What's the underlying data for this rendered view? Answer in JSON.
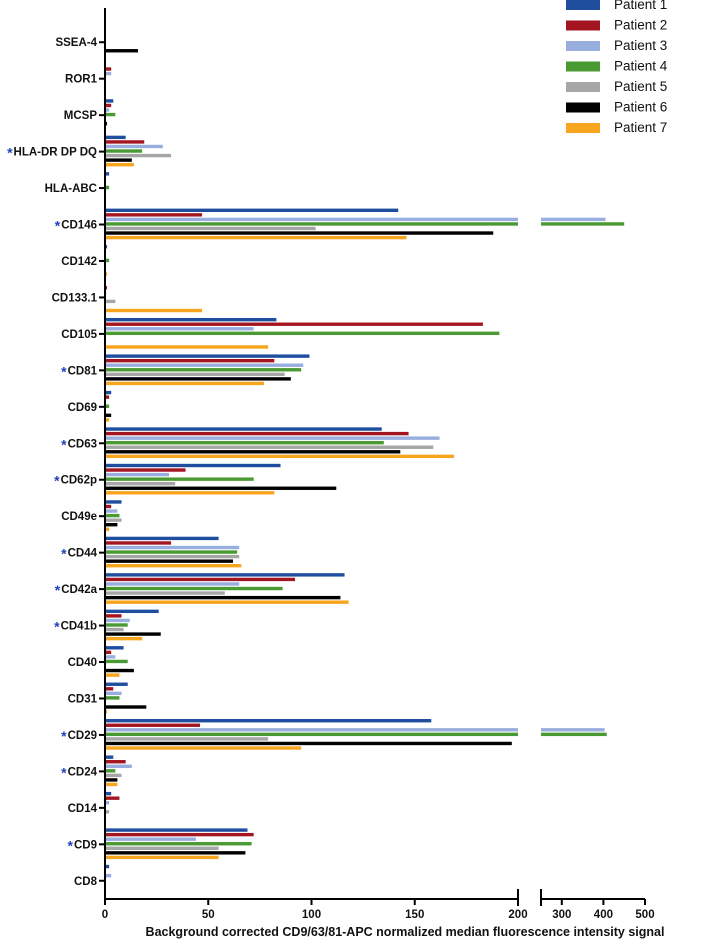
{
  "chart_data": {
    "type": "bar",
    "orientation": "horizontal",
    "xlabel": "Background corrected CD9/63/81-APC normalized median fluorescence intensity signal",
    "ylabel": "",
    "xlim": [
      0,
      500
    ],
    "x_axis_break": {
      "from": 200,
      "to": 250
    },
    "x_ticks": [
      0,
      50,
      100,
      150,
      200,
      300,
      400,
      500
    ],
    "grid": false,
    "legend_position": "top-right",
    "categories": [
      "SSEA-4",
      "ROR1",
      "MCSP",
      "HLA-DR DP DQ",
      "HLA-ABC",
      "CD146",
      "CD142",
      "CD133.1",
      "CD105",
      "CD81",
      "CD69",
      "CD63",
      "CD62p",
      "CD49e",
      "CD44",
      "CD42a",
      "CD41b",
      "CD40",
      "CD31",
      "CD29",
      "CD24",
      "CD14",
      "CD9",
      "CD8"
    ],
    "starred": [
      false,
      false,
      false,
      true,
      false,
      true,
      false,
      false,
      false,
      true,
      false,
      true,
      true,
      false,
      true,
      true,
      true,
      false,
      false,
      true,
      true,
      false,
      true,
      false
    ],
    "star_symbol": "*",
    "series": [
      {
        "name": "Patient 1",
        "color": "#1f4e9e",
        "values": [
          0,
          0,
          4,
          10,
          2,
          142,
          1,
          0,
          83,
          99,
          3,
          134,
          85,
          8,
          55,
          116,
          26,
          9,
          11,
          158,
          4,
          3,
          69,
          2
        ]
      },
      {
        "name": "Patient 2",
        "color": "#a31621",
        "values": [
          0,
          3,
          3,
          19,
          0,
          47,
          0,
          1,
          183,
          82,
          2,
          147,
          39,
          3,
          32,
          92,
          8,
          3,
          4,
          46,
          10,
          7,
          72,
          0
        ]
      },
      {
        "name": "Patient 3",
        "color": "#98aedf",
        "values": [
          0,
          3,
          2,
          28,
          0,
          405,
          0,
          0,
          72,
          96,
          0,
          162,
          31,
          6,
          65,
          65,
          12,
          5,
          8,
          403,
          13,
          2,
          44,
          3
        ]
      },
      {
        "name": "Patient 4",
        "color": "#4a9a33",
        "values": [
          0,
          0,
          5,
          18,
          2,
          450,
          2,
          0,
          191,
          95,
          2,
          135,
          72,
          7,
          64,
          86,
          11,
          11,
          7,
          408,
          5,
          0,
          71,
          0
        ]
      },
      {
        "name": "Patient 5",
        "color": "#a6a6a6",
        "values": [
          0,
          0,
          0,
          32,
          0,
          102,
          0,
          5,
          0,
          87,
          0,
          159,
          34,
          8,
          65,
          58,
          9,
          0,
          0,
          79,
          8,
          2,
          55,
          0
        ]
      },
      {
        "name": "Patient 6",
        "color": "#000000",
        "values": [
          16,
          0,
          1,
          13,
          0,
          188,
          0,
          0,
          0,
          90,
          3,
          143,
          112,
          6,
          62,
          114,
          27,
          14,
          20,
          197,
          6,
          0,
          68,
          0
        ]
      },
      {
        "name": "Patient 7",
        "color": "#f7a51c",
        "values": [
          0,
          0,
          0,
          14,
          0,
          146,
          1,
          47,
          79,
          77,
          2,
          169,
          82,
          2,
          66,
          118,
          18,
          7,
          1,
          95,
          6,
          0,
          55,
          0
        ]
      }
    ]
  }
}
